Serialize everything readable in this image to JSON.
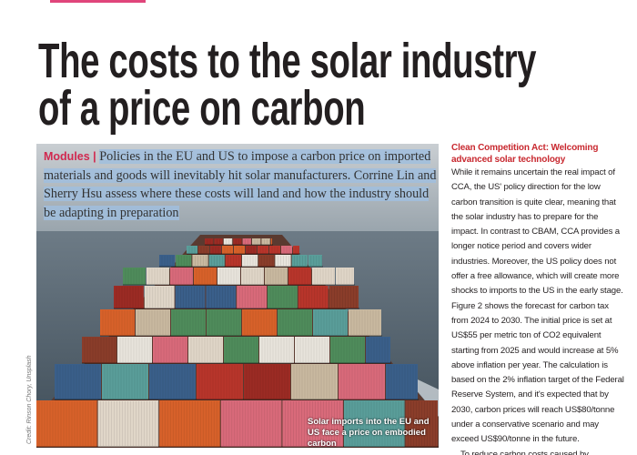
{
  "header": {
    "title_lines": [
      "The costs to the solar industry",
      "of a price on carbon"
    ]
  },
  "intro": {
    "label": "Modules |",
    "text": "Policies in the EU and US to impose a carbon price on imported materials and goods will inevitably hit solar manufacturers. Corrine Lin and Sherry Hsu assess where these costs will land and how the industry should be adapting in preparation"
  },
  "image": {
    "caption": "Solar imports into the EU and US face a price on embodied carbon",
    "credit": "Credit: Rinson Chory, Unsplash"
  },
  "article": {
    "heading": "Clean Competition Act: Welcoming advanced solar technology",
    "paragraphs": [
      "While it remains uncertain the real impact of CCA, the US' policy direction for the low carbon transition is quite clear, meaning that the solar industry has to prepare for the impact. In contrast to CBAM, CCA provides a longer notice period and covers wider industries. Moreover, the US policy does not offer a free allowance, which will create more shocks to imports to the US in the early stage. Figure 2 shows the forecast for carbon tax from 2024 to 2030. The initial price is set at US$55 per metric ton of CO2 equivalent starting from 2025 and would increase at 5% above inflation per year. The calculation is based on the 2% inflation target of the Federal Reserve System, and it's expected that by 2030, carbon prices will reach US$80/tonne under a conservative scenario and may exceed US$90/tonne in the future.",
      "To reduce carbon costs caused by emissions, it's more feasible and effective"
    ]
  }
}
